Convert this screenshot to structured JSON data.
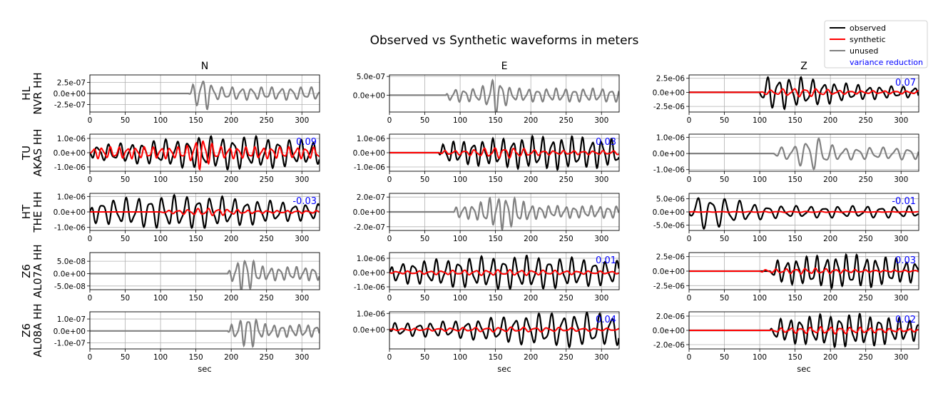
{
  "title": "Observed vs Synthetic waveforms in meters",
  "legend": {
    "placement": "top-right",
    "entries": [
      {
        "label": "observed",
        "color": "#000000"
      },
      {
        "label": "synthetic",
        "color": "#ff0000"
      },
      {
        "label": "unused",
        "color": "#808080"
      },
      {
        "label": "variance reduction",
        "color": "#0000ff",
        "text_only": true
      }
    ]
  },
  "columns": [
    "N",
    "E",
    "Z"
  ],
  "xlabel": "sec",
  "xlim": [
    0,
    325
  ],
  "xticks": [
    0,
    50,
    100,
    150,
    200,
    250,
    300
  ],
  "colors": {
    "observed": "#000000",
    "synthetic": "#ff0000",
    "unused": "#808080",
    "vr": "#0000ff",
    "grid": "#b0b0b0"
  },
  "chart_data": {
    "type": "line",
    "x_unit": "sec",
    "grid": true,
    "stations": [
      {
        "network": "HL",
        "name": "NVR HH"
      },
      {
        "network": "TU",
        "name": "AKAS HH"
      },
      {
        "network": "HT",
        "name": "THE HH"
      },
      {
        "network": "Z6",
        "name": "AL07A HH"
      },
      {
        "network": "Z6",
        "name": "AL08A HH"
      }
    ],
    "panels": [
      {
        "row": 0,
        "col": 0,
        "ylim": [
          -4.2e-07,
          4.2e-07
        ],
        "ytick_values": [
          2.5e-07,
          0,
          -2.5e-07
        ],
        "yticks": [
          "2.5e-07",
          "0.0e+00",
          "-2.5e-07"
        ],
        "used": false,
        "vr": "",
        "obs": {
          "start": 140,
          "end": 325,
          "amp": 4.2e-07,
          "period": 14,
          "center": 160,
          "width": 12
        }
      },
      {
        "row": 0,
        "col": 1,
        "ylim": [
          -4.5e-07,
          5.4e-07
        ],
        "ytick_values": [
          5e-07,
          0
        ],
        "yticks": [
          "5.0e-07",
          "0.0e+00"
        ],
        "used": false,
        "vr": "",
        "obs": {
          "start": 80,
          "end": 325,
          "amp": 5.2e-07,
          "period": 13,
          "center": 150,
          "width": 14
        }
      },
      {
        "row": 0,
        "col": 2,
        "ylim": [
          -3.5e-06,
          3.1e-06
        ],
        "ytick_values": [
          2.5e-06,
          0,
          -2.5e-06
        ],
        "yticks": [
          "2.5e-06",
          "0.0e+00",
          "-2.5e-06"
        ],
        "used": true,
        "vr": "0.07",
        "obs": {
          "start": 100,
          "end": 325,
          "amp": 3e-06,
          "period": 16,
          "center": 125,
          "width": 90
        },
        "syn": {
          "start": 100,
          "end": 325,
          "amp": 8e-07,
          "period": 16,
          "center": 160,
          "width": 40
        }
      },
      {
        "row": 1,
        "col": 0,
        "ylim": [
          -1.3e-06,
          1.3e-06
        ],
        "ytick_values": [
          1e-06,
          0,
          -1e-06
        ],
        "yticks": [
          "1.0e-06",
          "0.0e+00",
          "-1.0e-06"
        ],
        "used": true,
        "vr": "0.09",
        "obs": {
          "start": 0,
          "end": 325,
          "amp": 1.2e-06,
          "period": 16,
          "center": 200,
          "width": 150
        },
        "syn": {
          "start": 0,
          "end": 325,
          "amp": 1.2e-06,
          "period": 12,
          "center": 158,
          "width": 14
        }
      },
      {
        "row": 1,
        "col": 1,
        "ylim": [
          -1.3e-06,
          1.3e-06
        ],
        "ytick_values": [
          1e-06,
          0,
          -1e-06
        ],
        "yticks": [
          "1.0e-06",
          "0.0e+00",
          "-1.0e-06"
        ],
        "used": true,
        "vr": "0.03",
        "obs": {
          "start": 70,
          "end": 325,
          "amp": 1.2e-06,
          "period": 14,
          "center": 230,
          "width": 160
        },
        "syn": {
          "start": 70,
          "end": 325,
          "amp": 4e-07,
          "period": 14,
          "center": 160,
          "width": 40
        }
      },
      {
        "row": 1,
        "col": 2,
        "ylim": [
          -1.1e-06,
          1.2e-06
        ],
        "ytick_values": [
          1e-06,
          0,
          -1e-06
        ],
        "yticks": [
          "1.0e-06",
          "0.0e+00",
          "-1.0e-06"
        ],
        "used": false,
        "vr": "",
        "obs": {
          "start": 120,
          "end": 325,
          "amp": 1.1e-06,
          "period": 18,
          "center": 175,
          "width": 22
        }
      },
      {
        "row": 2,
        "col": 0,
        "ylim": [
          -1.2e-06,
          1.2e-06
        ],
        "ytick_values": [
          1e-06,
          0,
          -1e-06
        ],
        "yticks": [
          "1.0e-06",
          "0.0e+00",
          "-1.0e-06"
        ],
        "used": true,
        "vr": "-0.03",
        "obs": {
          "start": 0,
          "end": 325,
          "amp": 1.1e-06,
          "period": 17,
          "center": 130,
          "width": 150
        },
        "syn": {
          "start": 100,
          "end": 325,
          "amp": 2.5e-07,
          "period": 14,
          "center": 170,
          "width": 40
        }
      },
      {
        "row": 2,
        "col": 1,
        "ylim": [
          -2.5e-07,
          2.5e-07
        ],
        "ytick_values": [
          2e-07,
          0,
          -2e-07
        ],
        "yticks": [
          "2.0e-07",
          "0.0e+00",
          "-2.0e-07"
        ],
        "used": false,
        "vr": "",
        "obs": {
          "start": 90,
          "end": 325,
          "amp": 2.4e-07,
          "period": 12,
          "center": 160,
          "width": 30
        }
      },
      {
        "row": 2,
        "col": 2,
        "ylim": [
          -7e-06,
          7e-06
        ],
        "ytick_values": [
          5e-06,
          0,
          -5e-06
        ],
        "yticks": [
          "5.0e-06",
          "0.0e+00",
          "-5.0e-06"
        ],
        "used": true,
        "vr": "-0.01",
        "obs": {
          "start": 0,
          "end": 325,
          "amp": 6.5e-06,
          "period": 20,
          "center": 20,
          "width": 60
        },
        "syn": {
          "start": 0,
          "end": 325,
          "amp": 2e-07,
          "period": 20,
          "center": 150,
          "width": 80
        }
      },
      {
        "row": 3,
        "col": 0,
        "ylim": [
          -6.5e-08,
          8.5e-08
        ],
        "ytick_values": [
          5e-08,
          0,
          -5e-08
        ],
        "yticks": [
          "5.0e-08",
          "0.0e+00",
          "-5.0e-08"
        ],
        "used": false,
        "vr": "",
        "obs": {
          "start": 195,
          "end": 325,
          "amp": 8e-08,
          "period": 12,
          "center": 220,
          "width": 14
        }
      },
      {
        "row": 3,
        "col": 1,
        "ylim": [
          -1.2e-06,
          1.4e-06
        ],
        "ytick_values": [
          1e-06,
          0,
          -1e-06
        ],
        "yticks": [
          "1.0e-06",
          "0.0e+00",
          "-1.0e-06"
        ],
        "used": true,
        "vr": "0.01",
        "obs": {
          "start": 0,
          "end": 325,
          "amp": 1.2e-06,
          "period": 16,
          "center": 180,
          "width": 180
        },
        "syn": {
          "start": 0,
          "end": 325,
          "amp": 2e-07,
          "period": 16,
          "center": 160,
          "width": 120
        }
      },
      {
        "row": 3,
        "col": 2,
        "ylim": [
          -3.2e-06,
          3.2e-06
        ],
        "ytick_values": [
          2.5e-06,
          0,
          -2.5e-06
        ],
        "yticks": [
          "2.5e-06",
          "0.0e+00",
          "-2.5e-06"
        ],
        "used": true,
        "vr": "0.03",
        "obs": {
          "start": 115,
          "end": 325,
          "amp": 3e-06,
          "period": 14,
          "center": 220,
          "width": 110
        },
        "syn": {
          "start": 100,
          "end": 325,
          "amp": 5e-07,
          "period": 14,
          "center": 170,
          "width": 60
        }
      },
      {
        "row": 4,
        "col": 0,
        "ylim": [
          -1.5e-07,
          1.6e-07
        ],
        "ytick_values": [
          1e-07,
          0,
          -1e-07
        ],
        "yticks": [
          "1.0e-07",
          "0.0e+00",
          "-1.0e-07"
        ],
        "used": false,
        "vr": "",
        "obs": {
          "start": 195,
          "end": 325,
          "amp": 1.5e-07,
          "period": 12,
          "center": 225,
          "width": 14
        }
      },
      {
        "row": 4,
        "col": 1,
        "ylim": [
          -1.2e-06,
          1.1e-06
        ],
        "ytick_values": [
          1e-06,
          0
        ],
        "yticks": [
          "1.0e-06",
          "0.0e+00"
        ],
        "used": true,
        "vr": "0.04",
        "obs": {
          "start": 0,
          "end": 325,
          "amp": 1.1e-06,
          "period": 17,
          "center": 260,
          "width": 140
        },
        "syn": {
          "start": 0,
          "end": 325,
          "amp": 1.5e-07,
          "period": 17,
          "center": 180,
          "width": 120
        }
      },
      {
        "row": 4,
        "col": 2,
        "ylim": [
          -2.6e-06,
          2.6e-06
        ],
        "ytick_values": [
          2e-06,
          0,
          -2e-06
        ],
        "yticks": [
          "2.0e-06",
          "0.0e+00",
          "-2.0e-06"
        ],
        "used": true,
        "vr": "0.02",
        "obs": {
          "start": 115,
          "end": 325,
          "amp": 2.4e-06,
          "period": 14,
          "center": 220,
          "width": 110
        },
        "syn": {
          "start": 115,
          "end": 325,
          "amp": 5e-07,
          "period": 14,
          "center": 200,
          "width": 80
        }
      }
    ]
  }
}
